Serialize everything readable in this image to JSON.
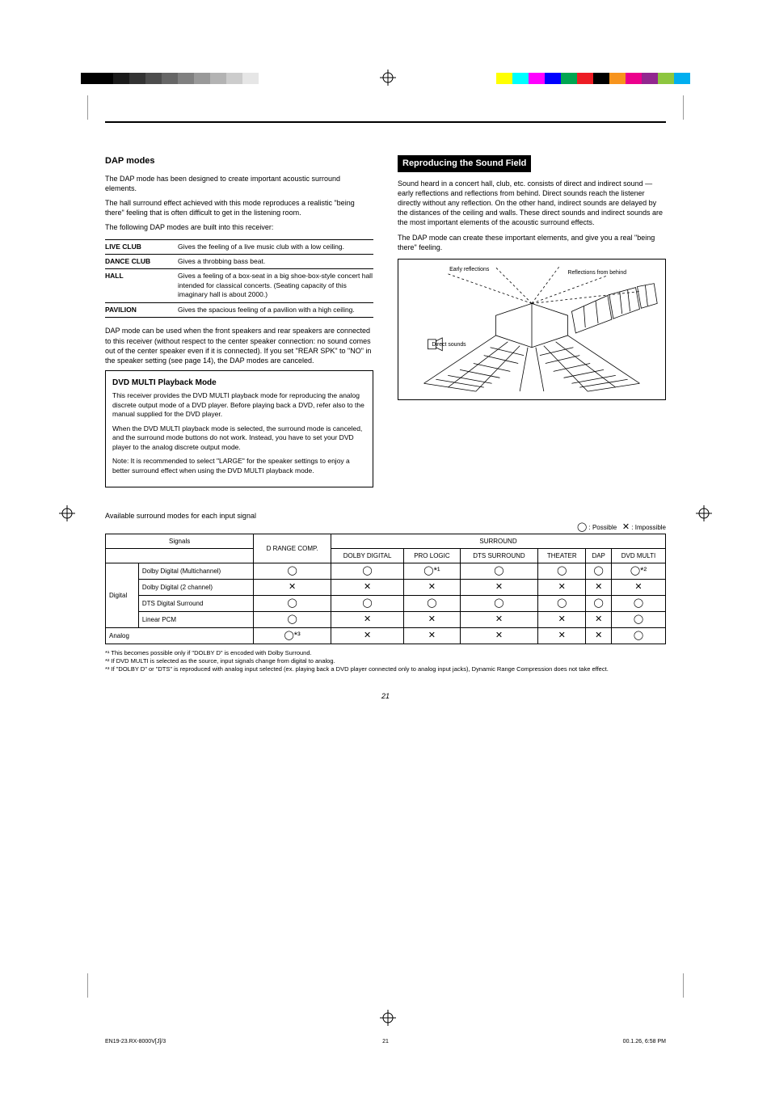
{
  "crop_bar_left_colors": [
    "#000000",
    "#000000",
    "#1a1a1a",
    "#333333",
    "#4d4d4d",
    "#666666",
    "#808080",
    "#999999",
    "#b3b3b3",
    "#cccccc",
    "#e6e6e6",
    "#ffffff"
  ],
  "crop_bar_right_colors": [
    "#ffff00",
    "#00ffff",
    "#ff00ff",
    "#0000ff",
    "#00a651",
    "#ed1c24",
    "#000000",
    "#f7941d",
    "#ec008c",
    "#92278f",
    "#8dc63f",
    "#00aeef"
  ],
  "left_col": {
    "heading": "DAP modes",
    "intro": "The DAP mode has been designed to create important acoustic surround elements.",
    "hall_effect_para": "The hall surround effect achieved with this mode reproduces a realistic \"being there\" feeling that is often difficult to get in the listening room.",
    "modes_intro": "The following DAP modes are built into this receiver:",
    "rows": [
      {
        "name": "LIVE CLUB",
        "desc": "Gives the feeling of a live music club with a low ceiling."
      },
      {
        "name": "DANCE CLUB",
        "desc": "Gives a throbbing bass beat."
      },
      {
        "name": "HALL",
        "desc": "Gives a feeling of a box-seat in a big shoe-box-style concert hall intended for classical concerts. (Seating capacity of this imaginary hall is about 2000.)"
      },
      {
        "name": "PAVILION",
        "desc": "Gives the spacious feeling of a pavilion with a high ceiling."
      }
    ],
    "dap_note": "DAP mode can be used when the front speakers and rear speakers are connected to this receiver (without respect to the center speaker connection: no sound comes out of the center speaker even if it is connected). If you set \"REAR SPK\" to \"NO\" in the speaker setting (see page 14), the DAP modes are canceled.",
    "box_heading": "DVD MULTI Playback Mode",
    "box_p1": "This receiver provides the DVD MULTI playback mode for reproducing the analog discrete output mode of a DVD player. Before playing back a DVD, refer also to the manual supplied for the DVD player.",
    "box_p2": "When the DVD MULTI playback mode is selected, the surround mode is canceled, and the surround mode buttons do not work. Instead, you have to set your DVD player to the analog discrete output mode.",
    "box_note": "Note: It is recommended to select \"LARGE\" for the speaker settings to enjoy a better surround effect when using the DVD MULTI playback mode."
  },
  "right_col": {
    "heading": "Reproducing the Sound Field",
    "p1": "Sound heard in a concert hall, club, etc. consists of direct and indirect sound — early reflections and reflections from behind. Direct sounds reach the listener directly without any reflection. On the other hand, indirect sounds are delayed by the distances of the ceiling and walls. These direct sounds and indirect sounds are the most important elements of the acoustic surround effects.",
    "p2": "The DAP mode can create these important elements, and give you a real \"being there\" feeling.",
    "diagram_labels": {
      "early": "Early reflections",
      "behind": "Reflections from behind",
      "direct": "Direct sounds"
    }
  },
  "table": {
    "title": "Available surround modes for each input signal",
    "legend_possible": "Possible",
    "legend_impossible": "Impossible",
    "col_groups": [
      "Signals",
      "D RANGE COMP.",
      "SURROUND"
    ],
    "cols": [
      "DOLBY DIGITAL",
      "PRO LOGIC",
      "DTS SURROUND",
      "THEATER",
      "DAP",
      "DVD MULTI"
    ],
    "group1": "Digital",
    "group2": "Analog",
    "rows": [
      {
        "sig": "Dolby Digital (Multichannel)",
        "dr": "◯",
        "cells": [
          "◯",
          "◯*¹",
          "◯",
          "◯",
          "◯",
          "◯*²"
        ]
      },
      {
        "sig": "Dolby Digital (2 channel)",
        "dr": "✕",
        "cells": [
          "✕",
          "✕",
          "✕",
          "✕",
          "✕",
          "✕"
        ]
      },
      {
        "sig": "DTS Digital Surround",
        "dr": "◯",
        "cells": [
          "◯",
          "◯",
          "◯",
          "◯",
          "◯",
          "◯"
        ]
      },
      {
        "sig": "Linear PCM",
        "dr": "◯",
        "cells": [
          "✕",
          "✕",
          "✕",
          "✕",
          "✕",
          "◯"
        ]
      },
      {
        "sig": "Analog",
        "dr": "◯*³",
        "cells": [
          "✕",
          "✕",
          "✕",
          "✕",
          "✕",
          "◯"
        ]
      }
    ],
    "footnotes": [
      "*¹ This becomes possible only if \"DOLBY D\" is encoded with Dolby Surround.",
      "*² If DVD MULTI is selected as the source, input signals change from digital to analog.",
      "*³ If \"DOLBY D\" or \"DTS\" is reproduced with analog input selected (ex. playing back a DVD player connected only to analog input jacks), Dynamic Range Compression does not take effect."
    ]
  },
  "page_number": "21",
  "file_tag": "EN19-23.RX-8000V[J]/3",
  "date_tag": "00.1.26, 6:58 PM",
  "footer_mid": "21"
}
